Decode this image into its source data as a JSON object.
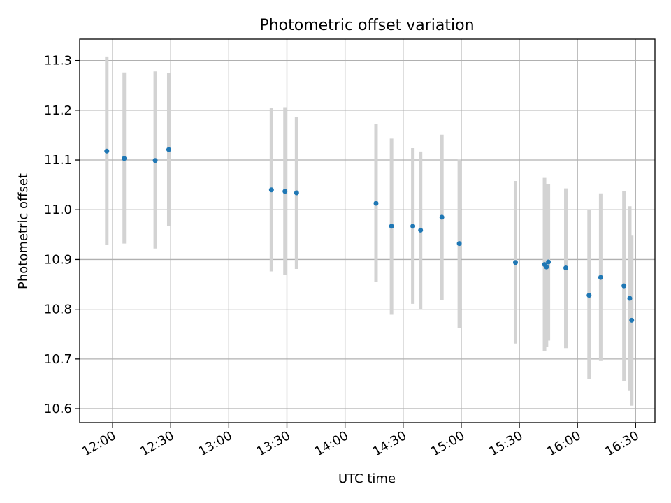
{
  "chart_data": {
    "type": "scatter",
    "title": "Photometric offset variation",
    "xlabel": "UTC time",
    "ylabel": "Photometric offset",
    "x_unit": "minutes after 00:00 UTC",
    "xlim": [
      "11:43",
      "16:40"
    ],
    "ylim": [
      10.572,
      11.343
    ],
    "grid": true,
    "x_ticks": [
      "12:00",
      "12:30",
      "13:00",
      "13:30",
      "14:00",
      "14:30",
      "15:00",
      "15:30",
      "16:00",
      "16:30"
    ],
    "y_ticks": [
      "10.6",
      "10.7",
      "10.8",
      "10.9",
      "11.0",
      "11.1",
      "11.2",
      "11.3"
    ],
    "colors": {
      "points": "#1f77b4",
      "errorbars": "#d3d3d3",
      "grid": "#b0b0b0"
    },
    "points": [
      {
        "x": "11:57",
        "y": 11.118,
        "ylow": 10.93,
        "yhigh": 11.308
      },
      {
        "x": "12:06",
        "y": 11.103,
        "ylow": 10.932,
        "yhigh": 11.276
      },
      {
        "x": "12:22",
        "y": 11.099,
        "ylow": 10.922,
        "yhigh": 11.278
      },
      {
        "x": "12:29",
        "y": 11.121,
        "ylow": 10.967,
        "yhigh": 11.275
      },
      {
        "x": "13:22",
        "y": 11.04,
        "ylow": 10.876,
        "yhigh": 11.204
      },
      {
        "x": "13:29",
        "y": 11.037,
        "ylow": 10.869,
        "yhigh": 11.206
      },
      {
        "x": "13:35",
        "y": 11.034,
        "ylow": 10.881,
        "yhigh": 11.186
      },
      {
        "x": "14:16",
        "y": 11.013,
        "ylow": 10.855,
        "yhigh": 11.172
      },
      {
        "x": "14:24",
        "y": 10.967,
        "ylow": 10.789,
        "yhigh": 11.143
      },
      {
        "x": "14:35",
        "y": 10.967,
        "ylow": 10.811,
        "yhigh": 11.124
      },
      {
        "x": "14:39",
        "y": 10.959,
        "ylow": 10.8,
        "yhigh": 11.117
      },
      {
        "x": "14:50",
        "y": 10.985,
        "ylow": 10.819,
        "yhigh": 11.151
      },
      {
        "x": "14:59",
        "y": 10.932,
        "ylow": 10.763,
        "yhigh": 11.101
      },
      {
        "x": "15:28",
        "y": 10.894,
        "ylow": 10.731,
        "yhigh": 11.058
      },
      {
        "x": "15:43",
        "y": 10.89,
        "ylow": 10.716,
        "yhigh": 11.064
      },
      {
        "x": "15:44",
        "y": 10.885,
        "ylow": 10.724,
        "yhigh": 11.052
      },
      {
        "x": "15:45",
        "y": 10.895,
        "ylow": 10.737,
        "yhigh": 11.052
      },
      {
        "x": "15:54",
        "y": 10.883,
        "ylow": 10.722,
        "yhigh": 11.043
      },
      {
        "x": "16:06",
        "y": 10.828,
        "ylow": 10.659,
        "yhigh": 10.999
      },
      {
        "x": "16:12",
        "y": 10.864,
        "ylow": 10.696,
        "yhigh": 11.033
      },
      {
        "x": "16:24",
        "y": 10.847,
        "ylow": 10.656,
        "yhigh": 11.038
      },
      {
        "x": "16:27",
        "y": 10.822,
        "ylow": 10.637,
        "yhigh": 11.007
      },
      {
        "x": "16:28",
        "y": 10.778,
        "ylow": 10.606,
        "yhigh": 10.948
      }
    ]
  }
}
